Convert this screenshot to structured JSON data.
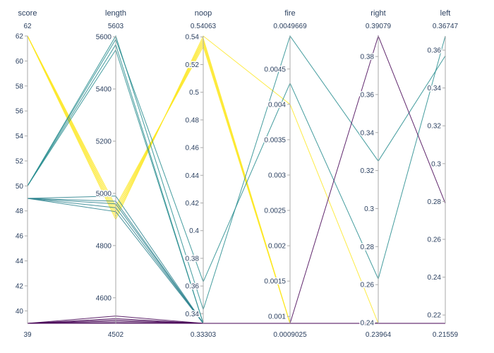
{
  "chart_data": {
    "type": "parallel_coordinates",
    "title": "",
    "color_scale": [
      "#440154",
      "#3b528b",
      "#21908d",
      "#5dc963",
      "#fde725"
    ],
    "color_by": "score",
    "dimensions": [
      {
        "name": "score",
        "range": [
          39,
          62
        ],
        "range_labels": [
          "39",
          "62"
        ],
        "ticks": [
          40,
          42,
          44,
          46,
          48,
          50,
          52,
          54,
          56,
          58,
          60,
          62
        ]
      },
      {
        "name": "length",
        "range": [
          4502,
          5603
        ],
        "range_labels": [
          "4502",
          "5603"
        ],
        "ticks": [
          4600,
          4800,
          5000,
          5200,
          5400,
          5600
        ]
      },
      {
        "name": "noop",
        "range": [
          0.33303,
          0.54063
        ],
        "range_labels": [
          "0.33303",
          "0.54063"
        ],
        "ticks": [
          0.34,
          0.36,
          0.38,
          0.4,
          0.42,
          0.44,
          0.46,
          0.48,
          0.5,
          0.52,
          0.54
        ]
      },
      {
        "name": "fire",
        "range": [
          0.0009025,
          0.0049669
        ],
        "range_labels": [
          "0.0009025",
          "0.0049669"
        ],
        "ticks": [
          0.001,
          0.0015,
          0.002,
          0.0025,
          0.003,
          0.0035,
          0.004,
          0.0045
        ]
      },
      {
        "name": "right",
        "range": [
          0.23964,
          0.39079
        ],
        "range_labels": [
          "0.23964",
          "0.39079"
        ],
        "ticks": [
          0.24,
          0.26,
          0.28,
          0.3,
          0.32,
          0.34,
          0.36,
          0.38
        ]
      },
      {
        "name": "left",
        "range": [
          0.21559,
          0.36747
        ],
        "range_labels": [
          "0.21559",
          "0.36747"
        ],
        "ticks": [
          0.22,
          0.24,
          0.26,
          0.28,
          0.3,
          0.32,
          0.34,
          0.36
        ]
      }
    ],
    "records": [
      [
        62,
        4900,
        0.54063,
        0.004,
        0.23964,
        0.21559
      ],
      [
        62,
        4910,
        0.539,
        0.0009025,
        0.23964,
        0.21559
      ],
      [
        62,
        4920,
        0.5375,
        0.0009025,
        0.23964,
        0.21559
      ],
      [
        62,
        4930,
        0.536,
        0.0009025,
        0.23964,
        0.21559
      ],
      [
        62,
        4940,
        0.5345,
        0.0009025,
        0.23964,
        0.21559
      ],
      [
        62,
        4950,
        0.533,
        0.0009025,
        0.23964,
        0.21559
      ],
      [
        50,
        5603,
        0.343,
        0.0049669,
        0.325,
        0.357
      ],
      [
        50,
        5590,
        0.363,
        0.0043,
        0.263,
        0.36747
      ],
      [
        50,
        5570,
        0.33303,
        0.0009025,
        0.23964,
        0.21559
      ],
      [
        50,
        5550,
        0.33303,
        0.0009025,
        0.23964,
        0.21559
      ],
      [
        49,
        4990,
        0.33303,
        0.0009025,
        0.23964,
        0.21559
      ],
      [
        49,
        4970,
        0.33303,
        0.0009025,
        0.23964,
        0.21559
      ],
      [
        49,
        4960,
        0.33303,
        0.0009025,
        0.23964,
        0.21559
      ],
      [
        49,
        4945,
        0.33303,
        0.0009025,
        0.23964,
        0.21559
      ],
      [
        49,
        4930,
        0.33303,
        0.0009025,
        0.23964,
        0.21559
      ],
      [
        39,
        4530,
        0.33303,
        0.0009025,
        0.39079,
        0.279
      ],
      [
        39,
        4520,
        0.33303,
        0.0009025,
        0.23964,
        0.21559
      ],
      [
        39,
        4515,
        0.33303,
        0.0009025,
        0.23964,
        0.21559
      ],
      [
        39,
        4510,
        0.33303,
        0.0009025,
        0.23964,
        0.21559
      ],
      [
        39,
        4505,
        0.33303,
        0.0009025,
        0.23964,
        0.21559
      ],
      [
        39,
        4502,
        0.33303,
        0.0009025,
        0.23964,
        0.21559
      ]
    ]
  }
}
